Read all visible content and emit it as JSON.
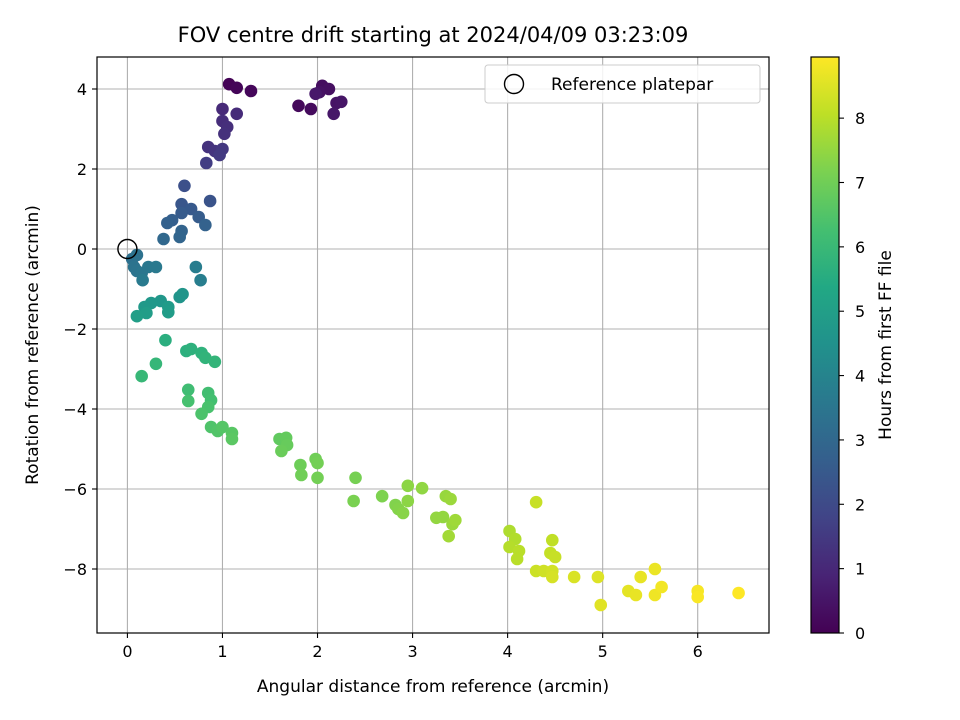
{
  "chart_data": {
    "type": "scatter",
    "title": "FOV centre drift starting at 2024/04/09 03:23:09",
    "xlabel": "Angular distance from reference (arcmin)",
    "ylabel": "Rotation from reference (arcmin)",
    "xlim": [
      -0.32,
      6.75
    ],
    "ylim": [
      -9.6,
      4.8
    ],
    "xticks": [
      0,
      1,
      2,
      3,
      4,
      5,
      6
    ],
    "yticks": [
      -8,
      -6,
      -4,
      -2,
      0,
      2,
      4
    ],
    "grid": true,
    "legend": {
      "placement": "top-right",
      "entries": [
        {
          "label": "Reference platepar",
          "marker": "open-circle"
        }
      ]
    },
    "reference_point": {
      "x": 0,
      "y": 0
    },
    "colorbar": {
      "label": "Hours from first FF file",
      "colormap": "viridis",
      "range": [
        0,
        8.95
      ],
      "ticks": [
        0,
        1,
        2,
        3,
        4,
        5,
        6,
        7,
        8
      ]
    },
    "series": [
      {
        "color_by": "hours",
        "points": [
          {
            "x": 1.07,
            "y": 4.12,
            "c": 0.05
          },
          {
            "x": 1.15,
            "y": 4.03,
            "c": 0.1
          },
          {
            "x": 1.3,
            "y": 3.95,
            "c": 0.15
          },
          {
            "x": 1.8,
            "y": 3.58,
            "c": 0.2
          },
          {
            "x": 1.93,
            "y": 3.5,
            "c": 0.25
          },
          {
            "x": 2.05,
            "y": 4.08,
            "c": 0.3
          },
          {
            "x": 2.12,
            "y": 4.0,
            "c": 0.35
          },
          {
            "x": 2.02,
            "y": 3.92,
            "c": 0.4
          },
          {
            "x": 2.2,
            "y": 3.65,
            "c": 0.45
          },
          {
            "x": 2.25,
            "y": 3.68,
            "c": 0.5
          },
          {
            "x": 2.17,
            "y": 3.38,
            "c": 0.55
          },
          {
            "x": 1.98,
            "y": 3.88,
            "c": 0.6
          },
          {
            "x": 1.0,
            "y": 3.5,
            "c": 1.05
          },
          {
            "x": 1.15,
            "y": 3.38,
            "c": 1.1
          },
          {
            "x": 1.0,
            "y": 3.2,
            "c": 1.15
          },
          {
            "x": 1.05,
            "y": 3.05,
            "c": 1.2
          },
          {
            "x": 1.02,
            "y": 2.88,
            "c": 1.25
          },
          {
            "x": 0.85,
            "y": 2.55,
            "c": 1.3
          },
          {
            "x": 0.92,
            "y": 2.45,
            "c": 1.35
          },
          {
            "x": 1.0,
            "y": 2.5,
            "c": 1.45
          },
          {
            "x": 0.97,
            "y": 2.35,
            "c": 1.5
          },
          {
            "x": 0.83,
            "y": 2.15,
            "c": 1.6
          },
          {
            "x": 0.6,
            "y": 1.58,
            "c": 2.2
          },
          {
            "x": 0.87,
            "y": 1.2,
            "c": 2.3
          },
          {
            "x": 0.57,
            "y": 1.12,
            "c": 2.4
          },
          {
            "x": 0.67,
            "y": 1.0,
            "c": 2.5
          },
          {
            "x": 0.57,
            "y": 0.9,
            "c": 2.55
          },
          {
            "x": 0.75,
            "y": 0.8,
            "c": 2.6
          },
          {
            "x": 0.47,
            "y": 0.72,
            "c": 2.7
          },
          {
            "x": 0.42,
            "y": 0.65,
            "c": 2.75
          },
          {
            "x": 0.82,
            "y": 0.6,
            "c": 2.8
          },
          {
            "x": 0.57,
            "y": 0.45,
            "c": 2.85
          },
          {
            "x": 0.55,
            "y": 0.3,
            "c": 2.9
          },
          {
            "x": 0.38,
            "y": 0.25,
            "c": 3.0
          },
          {
            "x": 0.05,
            "y": -0.25,
            "c": 3.3
          },
          {
            "x": 0.1,
            "y": -0.15,
            "c": 3.35
          },
          {
            "x": 0.07,
            "y": -0.45,
            "c": 3.4
          },
          {
            "x": 0.1,
            "y": -0.55,
            "c": 3.45
          },
          {
            "x": 0.15,
            "y": -0.6,
            "c": 3.5
          },
          {
            "x": 0.22,
            "y": -0.45,
            "c": 3.55
          },
          {
            "x": 0.3,
            "y": -0.45,
            "c": 3.6
          },
          {
            "x": 0.16,
            "y": -0.78,
            "c": 3.65
          },
          {
            "x": 0.72,
            "y": -0.45,
            "c": 3.75
          },
          {
            "x": 0.77,
            "y": -0.78,
            "c": 3.8
          },
          {
            "x": 0.55,
            "y": -1.2,
            "c": 4.6
          },
          {
            "x": 0.58,
            "y": -1.13,
            "c": 4.65
          },
          {
            "x": 0.35,
            "y": -1.3,
            "c": 4.7
          },
          {
            "x": 0.25,
            "y": -1.35,
            "c": 4.75
          },
          {
            "x": 0.18,
            "y": -1.45,
            "c": 4.8
          },
          {
            "x": 0.43,
            "y": -1.45,
            "c": 4.85
          },
          {
            "x": 0.43,
            "y": -1.58,
            "c": 4.9
          },
          {
            "x": 0.2,
            "y": -1.6,
            "c": 4.95
          },
          {
            "x": 0.1,
            "y": -1.68,
            "c": 5.0
          },
          {
            "x": 0.4,
            "y": -2.28,
            "c": 5.6
          },
          {
            "x": 0.62,
            "y": -2.55,
            "c": 5.65
          },
          {
            "x": 0.67,
            "y": -2.5,
            "c": 5.7
          },
          {
            "x": 0.78,
            "y": -2.6,
            "c": 5.75
          },
          {
            "x": 0.82,
            "y": -2.72,
            "c": 5.8
          },
          {
            "x": 0.92,
            "y": -2.82,
            "c": 5.85
          },
          {
            "x": 0.3,
            "y": -2.87,
            "c": 5.9
          },
          {
            "x": 0.15,
            "y": -3.18,
            "c": 5.95
          },
          {
            "x": 0.64,
            "y": -3.52,
            "c": 6.15
          },
          {
            "x": 0.85,
            "y": -3.6,
            "c": 6.2
          },
          {
            "x": 0.88,
            "y": -3.78,
            "c": 6.25
          },
          {
            "x": 0.64,
            "y": -3.8,
            "c": 6.3
          },
          {
            "x": 0.85,
            "y": -3.95,
            "c": 6.35
          },
          {
            "x": 0.78,
            "y": -4.12,
            "c": 6.4
          },
          {
            "x": 0.88,
            "y": -4.45,
            "c": 6.45
          },
          {
            "x": 0.95,
            "y": -4.55,
            "c": 6.5
          },
          {
            "x": 1.0,
            "y": -4.45,
            "c": 6.55
          },
          {
            "x": 1.1,
            "y": -4.6,
            "c": 6.6
          },
          {
            "x": 1.1,
            "y": -4.75,
            "c": 6.65
          },
          {
            "x": 1.6,
            "y": -4.75,
            "c": 6.75
          },
          {
            "x": 1.67,
            "y": -4.72,
            "c": 6.8
          },
          {
            "x": 1.68,
            "y": -4.9,
            "c": 6.85
          },
          {
            "x": 1.62,
            "y": -5.05,
            "c": 6.9
          },
          {
            "x": 1.82,
            "y": -5.4,
            "c": 6.95
          },
          {
            "x": 1.83,
            "y": -5.65,
            "c": 7.0
          },
          {
            "x": 1.98,
            "y": -5.25,
            "c": 7.0
          },
          {
            "x": 2.0,
            "y": -5.35,
            "c": 7.05
          },
          {
            "x": 2.0,
            "y": -5.72,
            "c": 7.05
          },
          {
            "x": 2.4,
            "y": -5.72,
            "c": 7.1
          },
          {
            "x": 2.38,
            "y": -6.3,
            "c": 7.15
          },
          {
            "x": 2.68,
            "y": -6.18,
            "c": 7.2
          },
          {
            "x": 2.82,
            "y": -6.4,
            "c": 7.25
          },
          {
            "x": 2.85,
            "y": -6.5,
            "c": 7.3
          },
          {
            "x": 2.9,
            "y": -6.6,
            "c": 7.35
          },
          {
            "x": 2.95,
            "y": -5.92,
            "c": 7.4
          },
          {
            "x": 2.95,
            "y": -6.3,
            "c": 7.4
          },
          {
            "x": 3.1,
            "y": -5.98,
            "c": 7.45
          },
          {
            "x": 3.25,
            "y": -6.72,
            "c": 7.5
          },
          {
            "x": 3.32,
            "y": -6.7,
            "c": 7.5
          },
          {
            "x": 3.35,
            "y": -6.18,
            "c": 7.55
          },
          {
            "x": 3.4,
            "y": -6.25,
            "c": 7.6
          },
          {
            "x": 3.42,
            "y": -6.88,
            "c": 7.6
          },
          {
            "x": 3.45,
            "y": -6.78,
            "c": 7.65
          },
          {
            "x": 3.38,
            "y": -7.18,
            "c": 7.7
          },
          {
            "x": 4.02,
            "y": -7.05,
            "c": 7.85
          },
          {
            "x": 4.08,
            "y": -7.25,
            "c": 7.9
          },
          {
            "x": 4.02,
            "y": -7.45,
            "c": 7.95
          },
          {
            "x": 4.12,
            "y": -7.55,
            "c": 8.0
          },
          {
            "x": 4.1,
            "y": -7.75,
            "c": 8.0
          },
          {
            "x": 4.47,
            "y": -7.28,
            "c": 8.1
          },
          {
            "x": 4.45,
            "y": -7.6,
            "c": 8.15
          },
          {
            "x": 4.5,
            "y": -7.7,
            "c": 8.2
          },
          {
            "x": 4.3,
            "y": -6.33,
            "c": 8.2
          },
          {
            "x": 4.3,
            "y": -8.05,
            "c": 8.25
          },
          {
            "x": 4.38,
            "y": -8.05,
            "c": 8.3
          },
          {
            "x": 4.47,
            "y": -8.05,
            "c": 8.35
          },
          {
            "x": 4.47,
            "y": -8.2,
            "c": 8.4
          },
          {
            "x": 4.7,
            "y": -8.2,
            "c": 8.45
          },
          {
            "x": 4.95,
            "y": -8.2,
            "c": 8.5
          },
          {
            "x": 4.98,
            "y": -8.9,
            "c": 8.55
          },
          {
            "x": 5.27,
            "y": -8.55,
            "c": 8.6
          },
          {
            "x": 5.35,
            "y": -8.65,
            "c": 8.65
          },
          {
            "x": 5.4,
            "y": -8.2,
            "c": 8.65
          },
          {
            "x": 5.55,
            "y": -8.0,
            "c": 8.7
          },
          {
            "x": 5.55,
            "y": -8.65,
            "c": 8.75
          },
          {
            "x": 5.62,
            "y": -8.45,
            "c": 8.8
          },
          {
            "x": 6.0,
            "y": -8.55,
            "c": 8.85
          },
          {
            "x": 6.0,
            "y": -8.7,
            "c": 8.9
          },
          {
            "x": 6.43,
            "y": -8.6,
            "c": 8.95
          }
        ]
      }
    ]
  }
}
